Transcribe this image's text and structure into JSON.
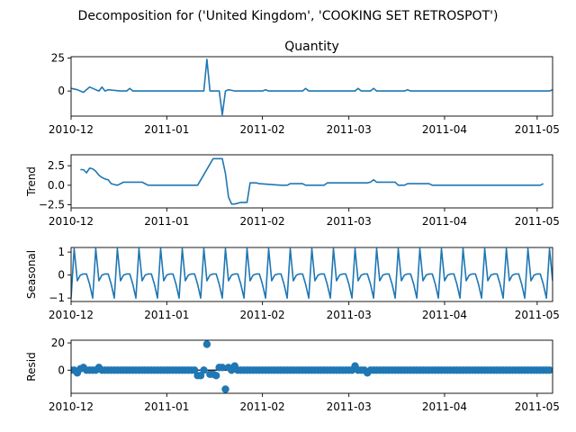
{
  "figure": {
    "suptitle": "Decomposition for ('United Kingdom', 'COOKING SET RETROSPOT')",
    "series_color": "#1f77b4"
  },
  "chart_data": [
    {
      "type": "line",
      "panel": "observed",
      "title": "Quantity",
      "ylabel": "",
      "xlim": [
        "2010-12-01",
        "2011-05-06"
      ],
      "ylim": [
        -19,
        26
      ],
      "yticks": [
        0,
        25
      ],
      "ytick_labels": [
        "0",
        "25"
      ],
      "xtick_labels": [
        "2010-12",
        "2011-01",
        "2011-02",
        "2011-03",
        "2011-04",
        "2011-05"
      ],
      "x": [
        "2010-12-01",
        "2010-12-03",
        "2010-12-05",
        "2010-12-07",
        "2010-12-09",
        "2010-12-10",
        "2010-12-11",
        "2010-12-12",
        "2010-12-13",
        "2010-12-17",
        "2010-12-19",
        "2010-12-20",
        "2010-12-21",
        "2011-01-13",
        "2011-01-14",
        "2011-01-15",
        "2011-01-18",
        "2011-01-19",
        "2011-01-20",
        "2011-01-21",
        "2011-01-23",
        "2011-01-24",
        "2011-02-01",
        "2011-02-02",
        "2011-02-03",
        "2011-02-14",
        "2011-02-15",
        "2011-02-16",
        "2011-03-03",
        "2011-03-04",
        "2011-03-05",
        "2011-03-08",
        "2011-03-09",
        "2011-03-10",
        "2011-03-19",
        "2011-03-20",
        "2011-03-21",
        "2011-05-05",
        "2011-05-06"
      ],
      "y": [
        2,
        1,
        -1,
        3,
        1,
        0,
        3,
        0,
        1,
        0,
        0,
        2,
        0,
        0,
        24,
        0,
        0,
        -18,
        0,
        1,
        0,
        0,
        0,
        1,
        0,
        0,
        2,
        0,
        0,
        2,
        0,
        0,
        2,
        0,
        0,
        1,
        0,
        0,
        1
      ]
    },
    {
      "type": "line",
      "panel": "trend",
      "title": "",
      "ylabel": "Trend",
      "xlim": [
        "2010-12-01",
        "2011-05-06"
      ],
      "ylim": [
        -2.9,
        3.9
      ],
      "yticks": [
        -2.5,
        0,
        2.5
      ],
      "ytick_labels": [
        "−2.5",
        "0.0",
        "2.5"
      ],
      "xtick_labels": [
        "2010-12",
        "2011-01",
        "2011-02",
        "2011-03",
        "2011-04",
        "2011-05"
      ],
      "x": [
        "2010-12-04",
        "2010-12-05",
        "2010-12-06",
        "2010-12-07",
        "2010-12-08",
        "2010-12-09",
        "2010-12-10",
        "2010-12-11",
        "2010-12-12",
        "2010-12-13",
        "2010-12-14",
        "2010-12-15",
        "2010-12-16",
        "2010-12-17",
        "2010-12-18",
        "2010-12-19",
        "2010-12-20",
        "2010-12-21",
        "2010-12-22",
        "2010-12-23",
        "2010-12-24",
        "2010-12-25",
        "2010-12-26",
        "2011-01-10",
        "2011-01-11",
        "2011-01-16",
        "2011-01-18",
        "2011-01-19",
        "2011-01-20",
        "2011-01-21",
        "2011-01-22",
        "2011-01-23",
        "2011-01-24",
        "2011-01-25",
        "2011-01-26",
        "2011-01-27",
        "2011-01-28",
        "2011-01-29",
        "2011-01-30",
        "2011-01-31",
        "2011-02-07",
        "2011-02-08",
        "2011-02-09",
        "2011-02-10",
        "2011-02-11",
        "2011-02-12",
        "2011-02-13",
        "2011-02-14",
        "2011-02-15",
        "2011-02-16",
        "2011-02-21",
        "2011-02-22",
        "2011-02-28",
        "2011-03-01",
        "2011-03-07",
        "2011-03-08",
        "2011-03-09",
        "2011-03-10",
        "2011-03-11",
        "2011-03-16",
        "2011-03-17",
        "2011-03-18",
        "2011-03-19",
        "2011-03-20",
        "2011-03-21",
        "2011-03-22",
        "2011-03-23",
        "2011-03-27",
        "2011-03-28",
        "2011-05-02",
        "2011-05-03"
      ],
      "y": [
        2.0,
        2.0,
        1.6,
        2.2,
        2.1,
        1.8,
        1.3,
        1.0,
        0.8,
        0.7,
        0.2,
        0.1,
        0.0,
        0.2,
        0.4,
        0.4,
        0.4,
        0.4,
        0.4,
        0.4,
        0.4,
        0.2,
        0.0,
        0.0,
        0.0,
        3.4,
        3.4,
        3.4,
        1.5,
        -1.5,
        -2.4,
        -2.4,
        -2.3,
        -2.2,
        -2.2,
        -2.2,
        0.3,
        0.3,
        0.3,
        0.2,
        0.0,
        0.0,
        0.0,
        0.2,
        0.2,
        0.2,
        0.2,
        0.2,
        0.0,
        0.0,
        0.0,
        0.3,
        0.3,
        0.3,
        0.3,
        0.4,
        0.7,
        0.4,
        0.4,
        0.4,
        0.0,
        0.0,
        0.0,
        0.2,
        0.2,
        0.2,
        0.2,
        0.2,
        0.0,
        0.0,
        0.2
      ]
    },
    {
      "type": "line",
      "panel": "seasonal",
      "title": "",
      "ylabel": "Seasonal",
      "xlim": [
        "2010-12-01",
        "2011-05-06"
      ],
      "ylim": [
        -1.15,
        1.2
      ],
      "yticks": [
        -1,
        0,
        1
      ],
      "ytick_labels": [
        "−1",
        "0",
        "1"
      ],
      "xtick_labels": [
        "2010-12",
        "2011-01",
        "2011-02",
        "2011-03",
        "2011-04",
        "2011-05"
      ],
      "period_days": 7,
      "start_date": "2010-12-01",
      "end_date": "2011-05-06",
      "pattern": [
        -1.0,
        1.15,
        -0.25,
        0.0,
        0.05,
        0.05,
        -0.4
      ]
    },
    {
      "type": "scatter",
      "panel": "residual",
      "title": "",
      "ylabel": "Resid",
      "xlim": [
        "2010-12-01",
        "2011-05-06"
      ],
      "ylim": [
        -17,
        22
      ],
      "yticks": [
        0,
        20
      ],
      "ytick_labels": [
        "0",
        "20"
      ],
      "xtick_labels": [
        "2010-12",
        "2011-01",
        "2011-02",
        "2011-03",
        "2011-04",
        "2011-05"
      ],
      "zero_line": true,
      "start_date": "2010-12-01",
      "end_date": "2011-05-05",
      "default_value": 0,
      "outliers": {
        "2010-12-03": -2,
        "2010-12-04": 1,
        "2010-12-05": 2,
        "2010-12-10": 2,
        "2011-01-11": -4,
        "2011-01-12": -4,
        "2011-01-14": 19,
        "2011-01-15": -3,
        "2011-01-16": -3,
        "2011-01-17": -4,
        "2011-01-18": 2,
        "2011-01-19": 2,
        "2011-01-20": -14,
        "2011-01-21": 2,
        "2011-01-23": 3,
        "2011-03-03": 3,
        "2011-03-07": -2
      }
    }
  ]
}
